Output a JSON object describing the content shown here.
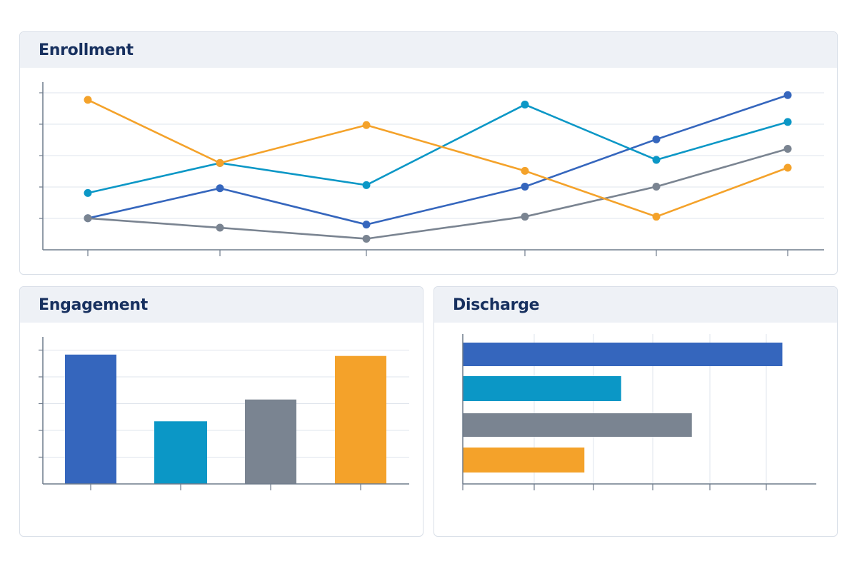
{
  "colors": {
    "blue": "#3566bd",
    "teal": "#0b97c6",
    "gray": "#7a8491",
    "orange": "#f4a22a",
    "grid": "#dfe4ec",
    "axis": "#6f7c8c"
  },
  "cards": {
    "enrollment": {
      "title": "Enrollment"
    },
    "engagement": {
      "title": "Engagement"
    },
    "discharge": {
      "title": "Discharge"
    }
  },
  "chart_data": [
    {
      "id": "enrollment",
      "type": "line",
      "title": "Enrollment",
      "x": [
        1,
        2,
        3,
        4,
        5,
        6
      ],
      "x_positions_note": "",
      "ylim": [
        0,
        5.2
      ],
      "grid": true,
      "series": [
        {
          "color": "blue",
          "values": [
            1.0,
            1.95,
            0.8,
            2.0,
            3.5,
            4.9
          ]
        },
        {
          "color": "teal",
          "values": [
            1.8,
            2.75,
            2.05,
            4.6,
            2.85,
            4.05
          ]
        },
        {
          "color": "gray",
          "values": [
            1.0,
            0.7,
            0.35,
            1.05,
            2.0,
            3.2
          ]
        },
        {
          "color": "orange",
          "values": [
            4.75,
            2.75,
            3.95,
            2.5,
            1.05,
            2.6
          ]
        }
      ]
    },
    {
      "id": "engagement",
      "type": "bar",
      "title": "Engagement",
      "categories": [
        "",
        "",
        "",
        ""
      ],
      "values": [
        4.75,
        2.3,
        3.1,
        4.7
      ],
      "ylim": [
        0,
        5.4
      ],
      "grid": true
    },
    {
      "id": "discharge",
      "type": "bar",
      "orientation": "horizontal",
      "title": "Discharge",
      "categories": [
        "",
        "",
        "",
        ""
      ],
      "values": [
        5.65,
        2.8,
        4.05,
        2.15
      ],
      "xlim": [
        0,
        6.25
      ],
      "grid": true
    }
  ]
}
